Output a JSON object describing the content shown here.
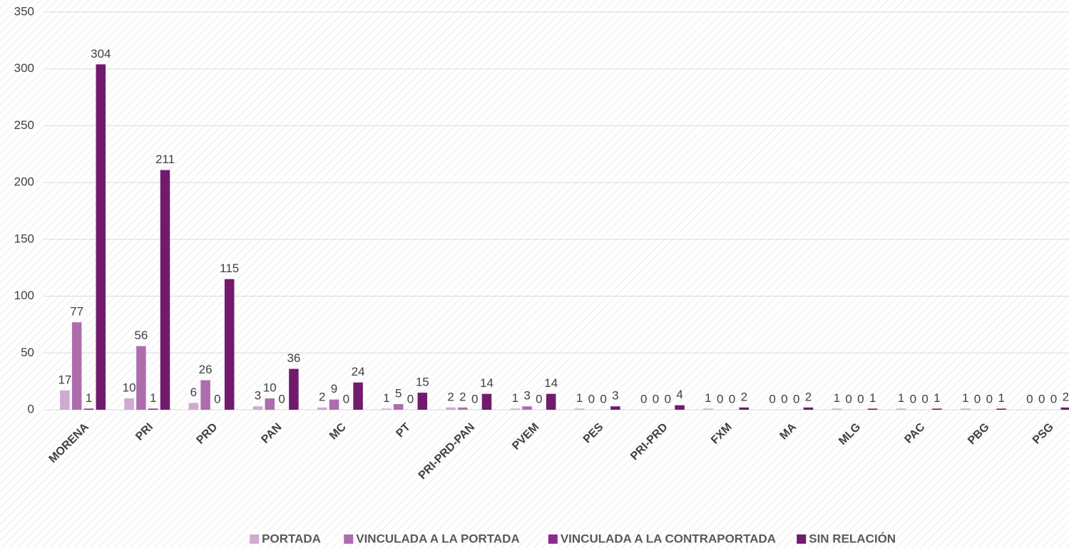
{
  "chart_data": {
    "type": "bar",
    "categories": [
      "MORENA",
      "PRI",
      "PRD",
      "PAN",
      "MC",
      "PT",
      "PRI-PRD-PAN",
      "PVEM",
      "PES",
      "PRI-PRD",
      "FXM",
      "MA",
      "MLG",
      "PAC",
      "PBG",
      "PSG"
    ],
    "series": [
      {
        "name": "PORTADA",
        "color": "#cfaacf",
        "values": [
          17,
          10,
          6,
          3,
          2,
          1,
          2,
          1,
          1,
          0,
          1,
          0,
          1,
          1,
          1,
          0
        ]
      },
      {
        "name": "VINCULADA A LA PORTADA",
        "color": "#ad6dad",
        "values": [
          77,
          56,
          26,
          10,
          9,
          5,
          2,
          3,
          0,
          0,
          0,
          0,
          0,
          0,
          0,
          0
        ]
      },
      {
        "name": "VINCULADA A LA CONTRAPORTADA",
        "color": "#8e2a8e",
        "values": [
          1,
          1,
          0,
          0,
          0,
          0,
          0,
          0,
          0,
          0,
          0,
          0,
          0,
          0,
          0,
          0
        ]
      },
      {
        "name": "SIN RELACIÓN",
        "color": "#721a6e",
        "values": [
          304,
          211,
          115,
          36,
          24,
          15,
          14,
          14,
          3,
          4,
          2,
          2,
          1,
          1,
          1,
          2
        ]
      }
    ],
    "ylim": [
      0,
      350
    ],
    "yticks": [
      0,
      50,
      100,
      150,
      200,
      250,
      300,
      350
    ],
    "grid": true,
    "legend": "bottom"
  }
}
